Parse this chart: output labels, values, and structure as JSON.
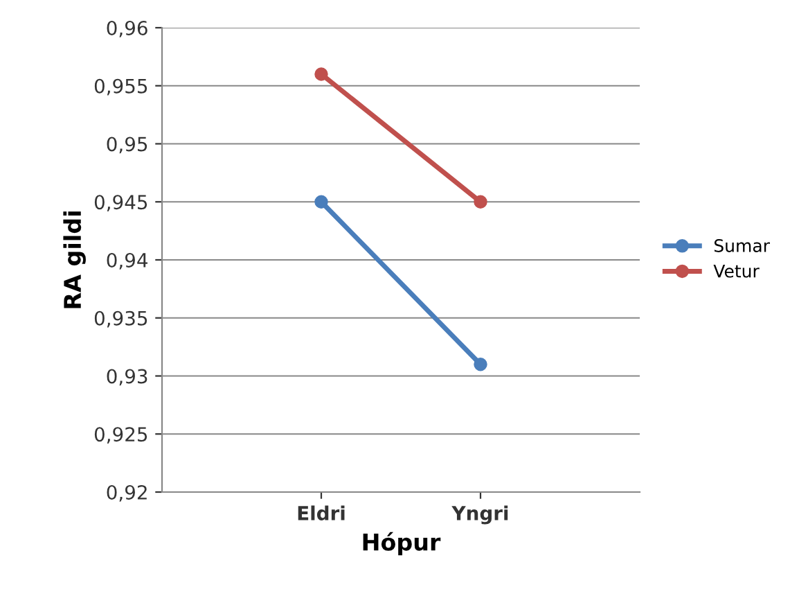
{
  "chart_data": {
    "type": "line",
    "xlabel": "Hópur",
    "ylabel": "RA gildi",
    "categories": [
      "Eldri",
      "Yngri"
    ],
    "series": [
      {
        "name": "Sumar",
        "color": "#4a7ebb",
        "values": [
          0.945,
          0.931
        ]
      },
      {
        "name": "Vetur",
        "color": "#c0504d",
        "values": [
          0.956,
          0.945
        ]
      }
    ],
    "ylim": [
      0.92,
      0.96
    ],
    "yticks": [
      {
        "value": 0.92,
        "label": "0,92"
      },
      {
        "value": 0.925,
        "label": "0,925"
      },
      {
        "value": 0.93,
        "label": "0,93"
      },
      {
        "value": 0.935,
        "label": "0,935"
      },
      {
        "value": 0.94,
        "label": "0,94"
      },
      {
        "value": 0.945,
        "label": "0,945"
      },
      {
        "value": 0.95,
        "label": "0,95"
      },
      {
        "value": 0.955,
        "label": "0,955"
      },
      {
        "value": 0.96,
        "label": "0,96"
      }
    ],
    "grid": "y",
    "legend": "right",
    "marker": "circle",
    "line_style": "solid"
  }
}
